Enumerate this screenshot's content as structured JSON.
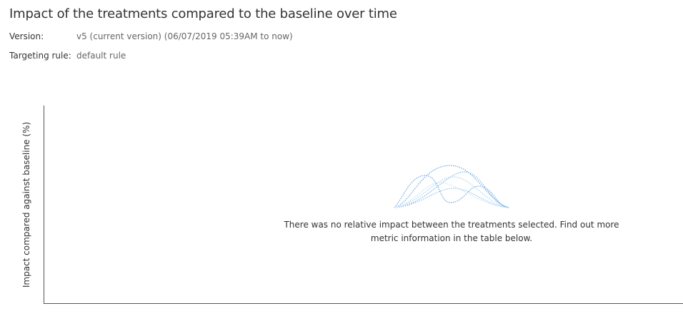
{
  "header": {
    "title": "Impact of the treatments compared to the baseline over time",
    "version_label": "Version:",
    "version_value": "v5 (current version) (06/07/2019 05:39AM to now)",
    "targeting_label": "Targeting rule:",
    "targeting_value": "default rule"
  },
  "chart": {
    "ylabel": "Impact compared against baseline (%)",
    "empty_icon": "wave-curves-illustration",
    "empty_message": "There was no relative impact between the treatments selected. Find out more metric information in the table below.",
    "colors": {
      "curve_dark": "#4a90d9",
      "curve_light": "#a8d4f5",
      "axis": "#555555"
    }
  }
}
